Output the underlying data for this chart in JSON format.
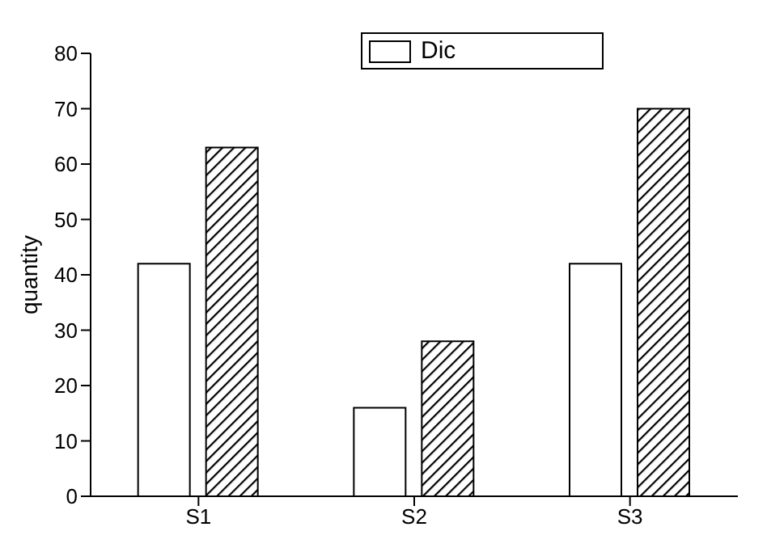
{
  "chart_data": {
    "type": "bar",
    "ylabel": "quantity",
    "categories": [
      "S1",
      "S2",
      "S3"
    ],
    "series": [
      {
        "name": "Dic",
        "color": "#ffffff",
        "values": [
          42,
          16,
          42
        ]
      },
      {
        "color": "#000000",
        "values": [
          63,
          28,
          70
        ]
      }
    ],
    "ylim": [
      0,
      80
    ],
    "yticks": [
      0,
      10,
      20,
      30,
      40,
      50,
      60,
      70,
      80
    ],
    "grid": false,
    "legend": "top"
  }
}
